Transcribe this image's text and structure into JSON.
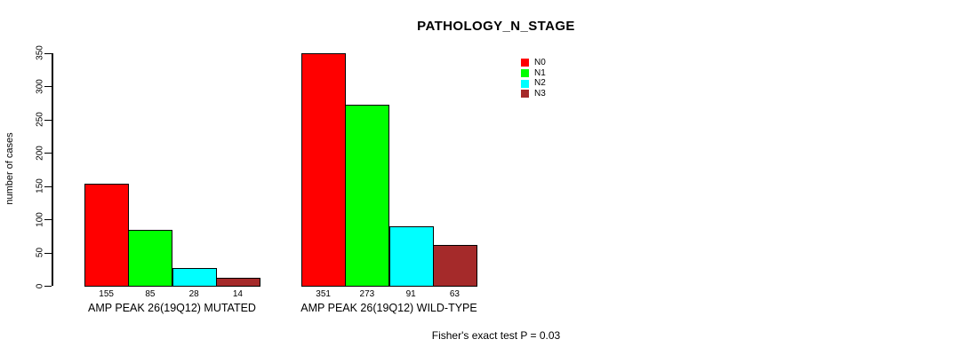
{
  "chart_data": {
    "type": "bar",
    "title": "PATHOLOGY_N_STAGE",
    "ylabel": "number of cases",
    "ylim": [
      0,
      350
    ],
    "yticks": [
      0,
      50,
      100,
      150,
      200,
      250,
      300,
      350
    ],
    "grid": false,
    "legend_position": "top-right",
    "categories": [
      "AMP PEAK 26(19Q12) MUTATED",
      "AMP PEAK 26(19Q12) WILD-TYPE"
    ],
    "series": [
      {
        "name": "N0",
        "color": "#FF0000",
        "values": [
          155,
          351
        ]
      },
      {
        "name": "N1",
        "color": "#00FF00",
        "values": [
          85,
          273
        ]
      },
      {
        "name": "N2",
        "color": "#00FFFF",
        "values": [
          28,
          91
        ]
      },
      {
        "name": "N3",
        "color": "#A52A2A",
        "values": [
          14,
          63
        ]
      }
    ],
    "bar_value_labels": true,
    "annotation": "Fisher's exact test P = 0.03"
  }
}
